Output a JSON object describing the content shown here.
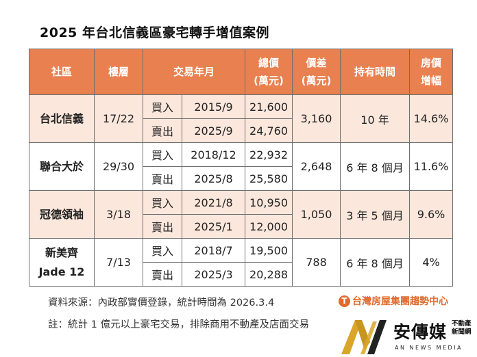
{
  "title": "2025 年台北信義區豪宅轉手增值案例",
  "table": {
    "headers": {
      "community": "社區",
      "floor": "樓層",
      "trade_date": "交易年月",
      "total_price": [
        "總價",
        "(萬元)"
      ],
      "price_diff": [
        "價差",
        "(萬元)"
      ],
      "holding_period": "持有時間",
      "appreciation": [
        "房價",
        "增幅"
      ]
    },
    "rows": [
      {
        "name": [
          "台北信義"
        ],
        "floor": "17/22",
        "buy_label": "買入",
        "buy_date": "2015/9",
        "buy_price": "21,600",
        "sell_label": "賣出",
        "sell_date": "2025/9",
        "sell_price": "24,760",
        "diff": "3,160",
        "holding": "10 年",
        "increase": "14.6%"
      },
      {
        "name": [
          "聯合大於"
        ],
        "floor": "29/30",
        "buy_label": "買入",
        "buy_date": "2018/12",
        "buy_price": "22,932",
        "sell_label": "賣出",
        "sell_date": "2025/8",
        "sell_price": "25,580",
        "diff": "2,648",
        "holding": "6 年 8 個月",
        "increase": "11.6%"
      },
      {
        "name": [
          "冠德領袖"
        ],
        "floor": "3/18",
        "buy_label": "買入",
        "buy_date": "2021/8",
        "buy_price": "10,950",
        "sell_label": "賣出",
        "sell_date": "2025/1",
        "sell_price": "12,000",
        "diff": "1,050",
        "holding": "3 年 5 個月",
        "increase": "9.6%"
      },
      {
        "name": [
          "新美齊",
          "Jade 12"
        ],
        "floor": "7/13",
        "buy_label": "買入",
        "buy_date": "2018/7",
        "buy_price": "19,500",
        "sell_label": "賣出",
        "sell_date": "2025/3",
        "sell_price": "20,288",
        "diff": "788",
        "holding": "6 年 8 個月",
        "increase": "4%"
      }
    ]
  },
  "footer": {
    "source": "資料來源：內政部實價登錄，統計時間為 2026.3.4",
    "note": "註：統計 1 億元以上豪宅交易，排除商用不動產及店面交易",
    "org_logo": "台灣房屋集團趨勢中心",
    "media_brand": "安傳媒",
    "media_sub": [
      "不動產",
      "新聞網"
    ],
    "media_english": "AN NEWS MEDIA"
  },
  "colors": {
    "header_bg": "#e8804f",
    "shaded_row_bg": "#fbe7dc",
    "logo_orange": "#e06a2a",
    "media_gold": "#d9a62a"
  }
}
